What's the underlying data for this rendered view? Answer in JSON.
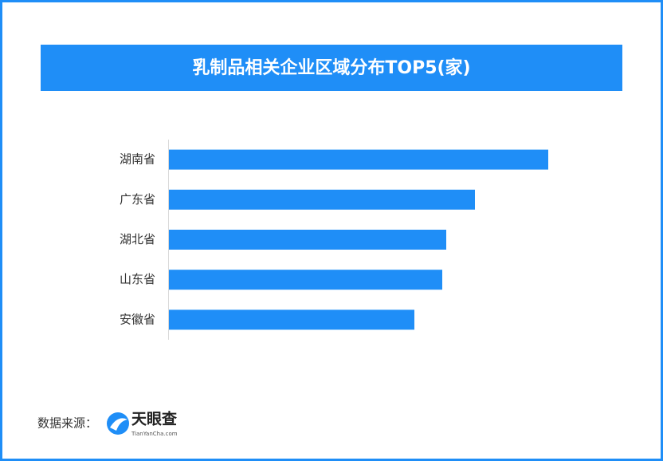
{
  "chart_data": {
    "type": "hbar",
    "title": "乳制品相关企业区域分布TOP5(家)",
    "categories": [
      "湖南省",
      "广东省",
      "湖北省",
      "山东省",
      "安徽省"
    ],
    "values": [
      476,
      384,
      348,
      343,
      308
    ],
    "color": "#1f8ef7",
    "xlim": [
      0,
      500
    ]
  },
  "source": {
    "label": "数据来源：",
    "brand": "天眼查",
    "url": "TianYanCha.com"
  }
}
